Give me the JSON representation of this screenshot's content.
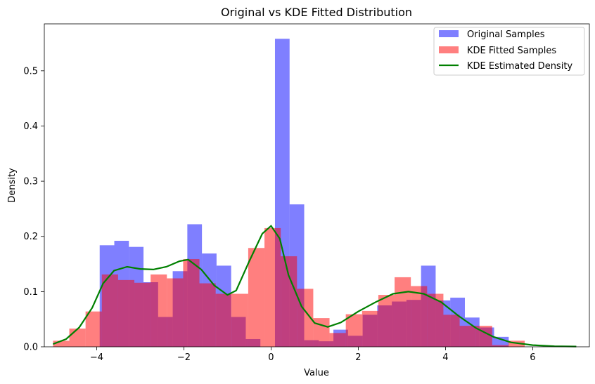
{
  "chart_data": {
    "type": "histogram",
    "title": "Original vs KDE Fitted Distribution",
    "xlabel": "Value",
    "ylabel": "Density",
    "xlim": [
      -5.2,
      7.3
    ],
    "ylim": [
      0,
      0.585
    ],
    "xticks": [
      -4,
      -2,
      0,
      2,
      4,
      6
    ],
    "xtick_labels": [
      "−4",
      "−2",
      "0",
      "2",
      "4",
      "6"
    ],
    "yticks": [
      0.0,
      0.1,
      0.2,
      0.3,
      0.4,
      0.5
    ],
    "ytick_labels": [
      "0.0",
      "0.1",
      "0.2",
      "0.3",
      "0.4",
      "0.5"
    ],
    "grid": false,
    "legend_position": "top-right",
    "series": [
      {
        "name": "Original Samples",
        "kind": "histogram",
        "color": "#0000ff",
        "alpha": 0.5,
        "bin_start": -3.93,
        "bin_width": 0.335,
        "values": [
          0.184,
          0.192,
          0.181,
          0.117,
          0.054,
          0.137,
          0.222,
          0.169,
          0.147,
          0.054,
          0.014,
          0.0,
          0.558,
          0.258,
          0.012,
          0.01,
          0.031,
          0.02,
          0.058,
          0.075,
          0.082,
          0.085,
          0.147,
          0.084,
          0.089,
          0.053,
          0.035,
          0.018
        ]
      },
      {
        "name": "KDE Fitted Samples",
        "kind": "histogram",
        "color": "#ff0000",
        "alpha": 0.5,
        "bin_start": -5.0,
        "bin_width": 0.373,
        "values": [
          0.011,
          0.033,
          0.064,
          0.131,
          0.121,
          0.116,
          0.131,
          0.124,
          0.159,
          0.115,
          0.096,
          0.096,
          0.179,
          0.215,
          0.164,
          0.105,
          0.052,
          0.025,
          0.059,
          0.065,
          0.094,
          0.126,
          0.11,
          0.096,
          0.058,
          0.038,
          0.038,
          0.003,
          0.011
        ]
      },
      {
        "name": "KDE Estimated Density",
        "kind": "line",
        "color": "#008000",
        "x": [
          -5.0,
          -4.7,
          -4.4,
          -4.1,
          -3.85,
          -3.6,
          -3.3,
          -3.0,
          -2.7,
          -2.4,
          -2.1,
          -1.9,
          -1.6,
          -1.3,
          -1.0,
          -0.8,
          -0.5,
          -0.2,
          0.0,
          0.2,
          0.4,
          0.7,
          1.0,
          1.3,
          1.6,
          2.0,
          2.4,
          2.8,
          3.15,
          3.5,
          3.9,
          4.3,
          4.7,
          5.1,
          5.5,
          6.0,
          6.5,
          7.0
        ],
        "y": [
          0.005,
          0.014,
          0.035,
          0.071,
          0.115,
          0.138,
          0.145,
          0.141,
          0.14,
          0.145,
          0.155,
          0.158,
          0.14,
          0.111,
          0.094,
          0.102,
          0.155,
          0.205,
          0.219,
          0.196,
          0.13,
          0.073,
          0.043,
          0.036,
          0.044,
          0.064,
          0.081,
          0.096,
          0.1,
          0.096,
          0.081,
          0.056,
          0.034,
          0.018,
          0.008,
          0.003,
          0.001,
          0.0005
        ]
      }
    ]
  }
}
